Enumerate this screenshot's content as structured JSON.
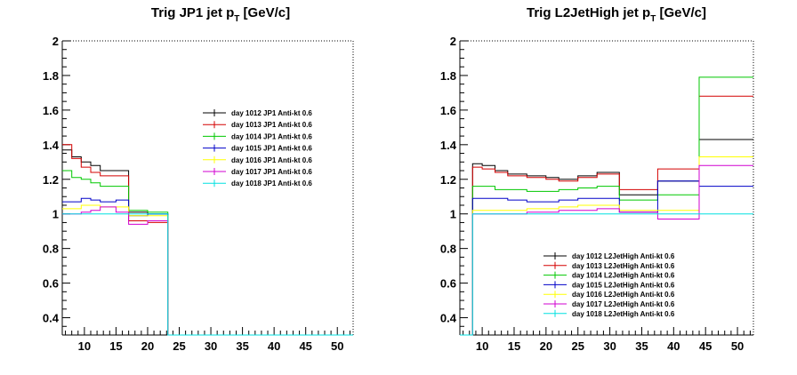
{
  "chart_data": [
    {
      "type": "step",
      "title": "Trig JP1 jet p",
      "title_sub": "T",
      "title_suffix": " [GeV/c]",
      "xlim": [
        6.5,
        52.5
      ],
      "ylim": [
        0.3,
        2.0
      ],
      "xticks": [
        10,
        15,
        20,
        25,
        30,
        35,
        40,
        45,
        50
      ],
      "yticks": [
        0.4,
        0.6,
        0.8,
        1,
        1.2,
        1.4,
        1.6,
        1.8,
        2
      ],
      "ytick_labels": [
        "0.4",
        "0.6",
        "0.8",
        "1",
        "1.2",
        "1.4",
        "1.6",
        "1.8",
        "2"
      ],
      "legend_position": "upper-right",
      "bin_edges": [
        6.5,
        8,
        9.5,
        11,
        12.5,
        15,
        17,
        20,
        23.2,
        52.5
      ],
      "series": [
        {
          "name": "day 1012 JP1 Anti-kt 0.6",
          "color": "#000000",
          "values": [
            1.37,
            1.33,
            1.3,
            1.28,
            1.25,
            1.25,
            1.01,
            1.0,
            0.0
          ]
        },
        {
          "name": "day 1013 JP1 Anti-kt 0.6",
          "color": "#d40000",
          "values": [
            1.4,
            1.32,
            1.27,
            1.24,
            1.22,
            1.22,
            0.96,
            0.95,
            0.0
          ]
        },
        {
          "name": "day 1014 JP1 Anti-kt 0.6",
          "color": "#00c800",
          "values": [
            1.25,
            1.21,
            1.2,
            1.18,
            1.16,
            1.16,
            1.02,
            1.01,
            0.0
          ]
        },
        {
          "name": "day 1015 JP1 Anti-kt 0.6",
          "color": "#0000c8",
          "values": [
            1.07,
            1.07,
            1.09,
            1.08,
            1.07,
            1.08,
            0.99,
            1.0,
            0.0
          ]
        },
        {
          "name": "day 1016 JP1 Anti-kt 0.6",
          "color": "#ffff00",
          "values": [
            1.03,
            1.03,
            1.05,
            1.05,
            1.04,
            1.04,
            0.99,
            0.99,
            0.0
          ]
        },
        {
          "name": "day 1017 JP1 Anti-kt 0.6",
          "color": "#d000d0",
          "values": [
            1.0,
            1.0,
            1.01,
            1.02,
            1.04,
            1.01,
            0.94,
            0.96,
            0.0
          ]
        },
        {
          "name": "day 1018 JP1 Anti-kt 0.6",
          "color": "#00e0e0",
          "values": [
            1.0,
            1.0,
            1.0,
            1.0,
            1.0,
            1.0,
            1.0,
            1.0,
            0.0
          ]
        }
      ]
    },
    {
      "type": "step",
      "title": "Trig L2JetHigh jet p",
      "title_sub": "T",
      "title_suffix": " [GeV/c]",
      "xlim": [
        6.5,
        52.5
      ],
      "ylim": [
        0.3,
        2.0
      ],
      "xticks": [
        10,
        15,
        20,
        25,
        30,
        35,
        40,
        45,
        50
      ],
      "yticks": [
        0.4,
        0.6,
        0.8,
        1,
        1.2,
        1.4,
        1.6,
        1.8,
        2
      ],
      "ytick_labels": [
        "0.4",
        "0.6",
        "0.8",
        "1",
        "1.2",
        "1.4",
        "1.6",
        "1.8",
        "2"
      ],
      "legend_position": "lower-center",
      "bin_edges": [
        6.5,
        8.5,
        10,
        12,
        14,
        17,
        20,
        22,
        25,
        28,
        31.5,
        37.5,
        44,
        52.5
      ],
      "series": [
        {
          "name": "day 1012 L2JetHigh Anti-kt 0.6",
          "color": "#000000",
          "values": [
            0.0,
            1.29,
            1.28,
            1.25,
            1.23,
            1.22,
            1.21,
            1.2,
            1.22,
            1.24,
            1.11,
            1.19,
            1.43
          ]
        },
        {
          "name": "day 1013 L2JetHigh Anti-kt 0.6",
          "color": "#d40000",
          "values": [
            0.0,
            1.27,
            1.26,
            1.24,
            1.22,
            1.21,
            1.2,
            1.19,
            1.21,
            1.23,
            1.14,
            1.26,
            1.68
          ]
        },
        {
          "name": "day 1014 L2JetHigh Anti-kt 0.6",
          "color": "#00c800",
          "values": [
            0.0,
            1.16,
            1.16,
            1.14,
            1.14,
            1.13,
            1.13,
            1.14,
            1.15,
            1.16,
            1.08,
            1.11,
            1.79
          ]
        },
        {
          "name": "day 1015 L2JetHigh Anti-kt 0.6",
          "color": "#0000c8",
          "values": [
            0.0,
            1.09,
            1.09,
            1.09,
            1.08,
            1.07,
            1.07,
            1.08,
            1.09,
            1.09,
            1.01,
            1.19,
            1.16
          ]
        },
        {
          "name": "day 1016 L2JetHigh Anti-kt 0.6",
          "color": "#ffff00",
          "values": [
            0.0,
            1.02,
            1.02,
            1.02,
            1.02,
            1.03,
            1.03,
            1.04,
            1.05,
            1.05,
            1.02,
            1.02,
            1.33
          ]
        },
        {
          "name": "day 1017 L2JetHigh Anti-kt 0.6",
          "color": "#d000d0",
          "values": [
            0.0,
            1.0,
            1.0,
            1.0,
            1.0,
            1.01,
            1.01,
            1.02,
            1.02,
            1.03,
            1.01,
            0.97,
            1.28
          ]
        },
        {
          "name": "day 1018 L2JetHigh Anti-kt 0.6",
          "color": "#00e0e0",
          "values": [
            0.0,
            1.0,
            1.0,
            1.0,
            1.0,
            1.0,
            1.0,
            1.0,
            1.0,
            1.0,
            1.0,
            1.0,
            1.0
          ]
        }
      ]
    }
  ]
}
